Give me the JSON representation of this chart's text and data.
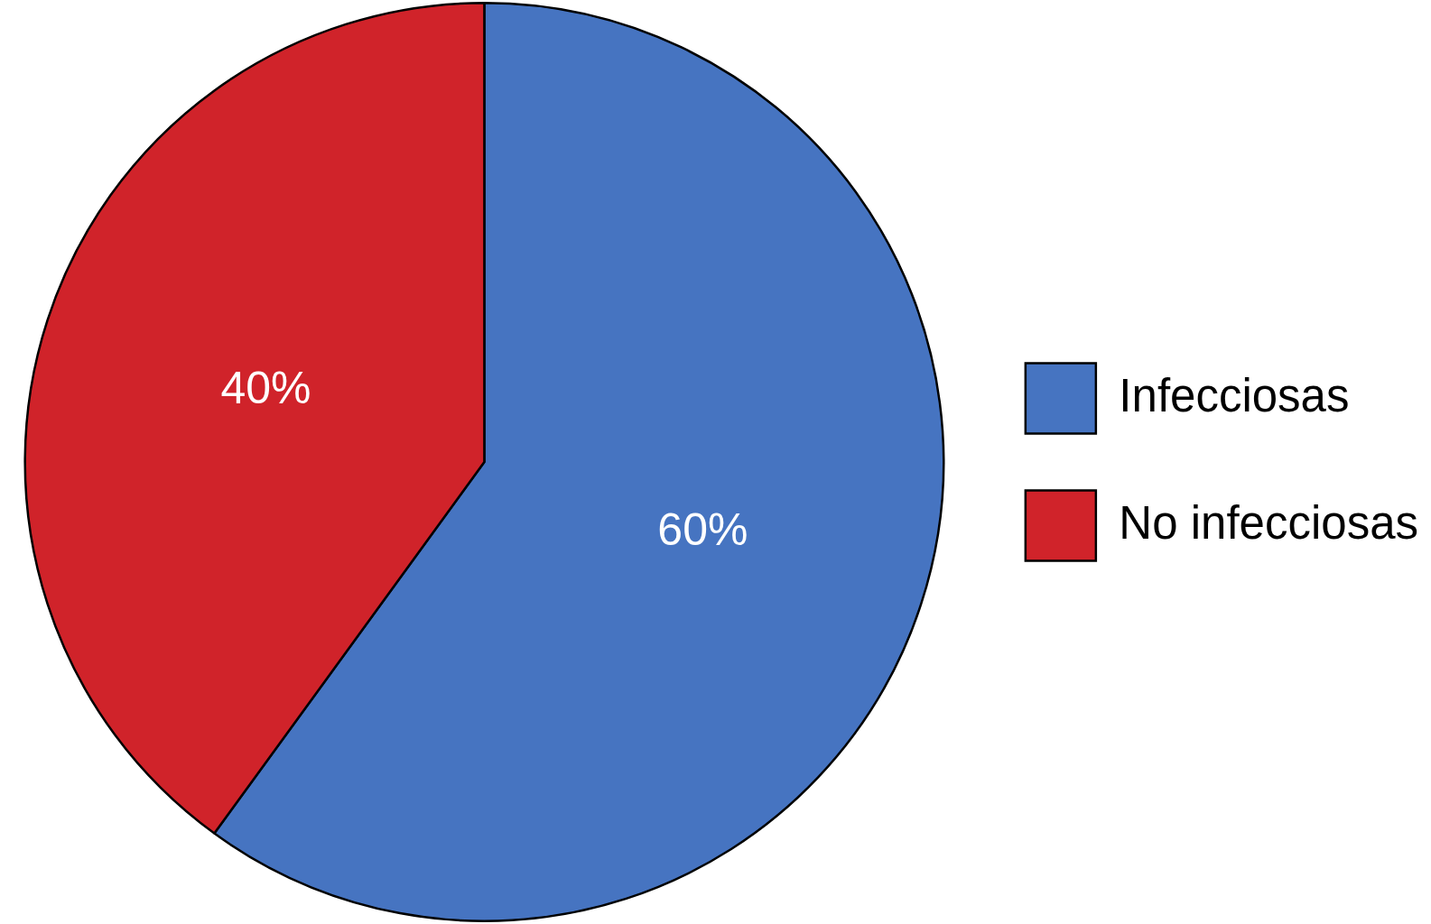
{
  "chart_data": {
    "type": "pie",
    "categories": [
      "Infecciosas",
      "No infecciosas"
    ],
    "values": [
      60,
      40
    ],
    "colors": [
      "#4674c1",
      "#d0232a"
    ],
    "value_labels": [
      "60%",
      "40%"
    ],
    "legend": "right"
  }
}
